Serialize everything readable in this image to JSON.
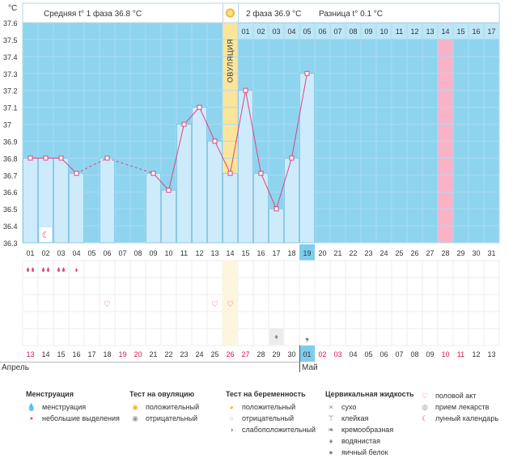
{
  "colors": {
    "sky": "#8fd4ef",
    "bar": "#cdebfa",
    "bar_stroke": "#7ec3e6",
    "line": "#e0457b",
    "pink": "#fbb2c7",
    "ovul": "#fbe59b",
    "red_date": "#d8184a",
    "sel": "#7fcdee"
  },
  "header": {
    "unit": "°C",
    "phase1": "Средняя t° 1 фаза 36.8 °C",
    "phase2": "2 фаза 36.9 °C",
    "diff": "Разница t° 0.1 °C",
    "ovulation": "ОВУЛЯЦИЯ",
    "month_april": "Апрель",
    "month_may": "Май"
  },
  "chart_data": {
    "type": "line",
    "title": "",
    "xlabel": "",
    "ylabel": "°C",
    "ylim": [
      36.3,
      37.6
    ],
    "grid": true,
    "y_ticks": [
      "36.3",
      "36.4",
      "36.5",
      "36.6",
      "36.7",
      "36.8",
      "36.9",
      "37",
      "37.1",
      "37.2",
      "37.3",
      "37.4",
      "37.5",
      "37.6"
    ],
    "days": [
      "01",
      "02",
      "03",
      "04",
      "05",
      "06",
      "07",
      "08",
      "09",
      "10",
      "11",
      "12",
      "13",
      "14",
      "15",
      "16",
      "17",
      "18",
      "19",
      "20",
      "21",
      "22",
      "23",
      "24",
      "25",
      "26",
      "27",
      "28",
      "29",
      "30",
      "31"
    ],
    "top_labels": [
      "01",
      "02",
      "03",
      "04",
      "05",
      "06",
      "07",
      "08",
      "09",
      "10",
      "11",
      "12",
      "13",
      "14",
      "15",
      "16",
      "17"
    ],
    "values": [
      36.8,
      36.8,
      36.8,
      36.71,
      null,
      36.8,
      null,
      null,
      36.71,
      36.61,
      37.0,
      37.1,
      36.9,
      36.71,
      37.2,
      36.71,
      36.5,
      36.8,
      37.3,
      null,
      null,
      null,
      null,
      null,
      null,
      null,
      null,
      null,
      null,
      null,
      null
    ],
    "dashed_gaps": [
      [
        4,
        6
      ],
      [
        6,
        9
      ]
    ],
    "dates": [
      "13",
      "14",
      "15",
      "16",
      "17",
      "18",
      "19",
      "20",
      "21",
      "22",
      "23",
      "24",
      "25",
      "26",
      "27",
      "28",
      "29",
      "30",
      "01",
      "02",
      "03",
      "04",
      "05",
      "06",
      "07",
      "08",
      "09",
      "10",
      "11",
      "12",
      "13"
    ],
    "red_dates": [
      0,
      6,
      7,
      13,
      14,
      19,
      20,
      27,
      28
    ],
    "ovulation_day": 14,
    "highlight_day": 28,
    "selected_day": 19
  },
  "symbols": {
    "menstruation_days": [
      1,
      2,
      3
    ],
    "spotting_days": [
      4
    ],
    "moon_day": 2,
    "heart_days": [
      6,
      13,
      14
    ],
    "watery_days": [
      17
    ],
    "egg_white_days": [
      19
    ]
  },
  "legend": {
    "menstruation": {
      "title": "Менструация",
      "items": [
        "менструация",
        "небольшие выделения"
      ]
    },
    "ovulation_test": {
      "title": "Тест на овуляцию",
      "items": [
        "положительный",
        "отрицательный"
      ]
    },
    "pregnancy_test": {
      "title": "Тест на беременность",
      "items": [
        "положительный",
        "отрицательный",
        "слабоположительный"
      ]
    },
    "cervical": {
      "title": "Цервикальная жидкость",
      "items": [
        "сухо",
        "клейкая",
        "кремообразная",
        "водянистая",
        "яичный белок"
      ]
    },
    "other": {
      "items": [
        "половой акт",
        "прием лекарств",
        "лунный календарь"
      ]
    }
  }
}
